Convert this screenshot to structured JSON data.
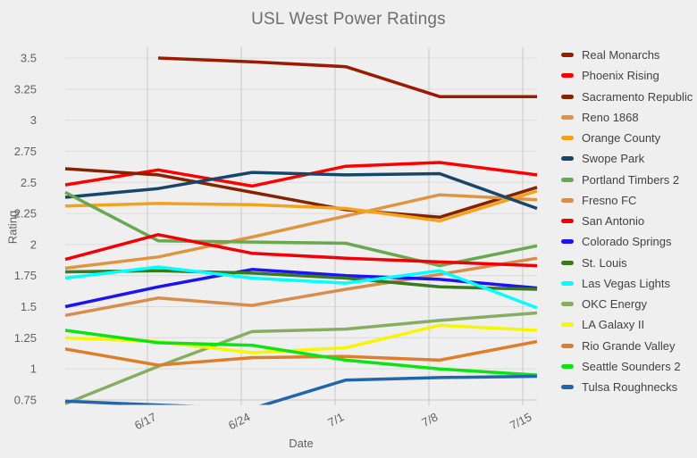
{
  "title": "USL West Power Ratings",
  "axes": {
    "y_label": "Rating",
    "x_label": "Date",
    "y_ticks": [
      "3.5",
      "3.25",
      "3",
      "2.75",
      "2.5",
      "2.25",
      "2",
      "1.75",
      "1.5",
      "1.25",
      "1",
      "0.75"
    ],
    "x_ticks": [
      "6/17",
      "6/24",
      "7/1",
      "7/8",
      "7/15"
    ]
  },
  "chart_data": {
    "type": "line",
    "title": "USL West Power Ratings",
    "xlabel": "Date",
    "ylabel": "Rating",
    "x": [
      "",
      "6/17",
      "6/24",
      "7/1",
      "7/8",
      "7/15"
    ],
    "x_tick_labels": [
      "6/17",
      "6/24",
      "7/1",
      "7/8",
      "7/15"
    ],
    "ylim": [
      0.75,
      3.5
    ],
    "y_tick_step": 0.25,
    "grid": true,
    "legend_position": "right",
    "series": [
      {
        "name": "Real Monarchs",
        "color": "#9a1b01",
        "values": [
          null,
          3.5,
          3.47,
          3.43,
          3.19,
          3.19
        ]
      },
      {
        "name": "Phoenix Rising",
        "color": "#ff0000",
        "values": [
          2.48,
          2.6,
          2.47,
          2.63,
          2.66,
          2.56
        ]
      },
      {
        "name": "Sacramento Republic",
        "color": "#842300",
        "values": [
          2.61,
          2.56,
          2.42,
          2.28,
          2.22,
          2.46
        ]
      },
      {
        "name": "Reno 1868",
        "color": "#e09440",
        "values": [
          1.81,
          1.9,
          2.06,
          2.23,
          2.4,
          2.36
        ]
      },
      {
        "name": "Orange County",
        "color": "#f3a21b",
        "values": [
          2.31,
          2.33,
          2.32,
          2.29,
          2.19,
          2.43
        ]
      },
      {
        "name": "Swope Park",
        "color": "#16466a",
        "values": [
          2.38,
          2.45,
          2.58,
          2.56,
          2.57,
          2.29
        ]
      },
      {
        "name": "Portland Timbers 2",
        "color": "#69a84f",
        "values": [
          2.42,
          2.03,
          2.02,
          2.01,
          1.83,
          1.99
        ]
      },
      {
        "name": "Fresno FC",
        "color": "#d88d4b",
        "values": [
          1.43,
          1.57,
          1.51,
          1.64,
          1.76,
          1.89
        ]
      },
      {
        "name": "San Antonio",
        "color": "#f10008",
        "values": [
          1.88,
          2.08,
          1.93,
          1.89,
          1.86,
          1.83
        ]
      },
      {
        "name": "Colorado Springs",
        "color": "#1d13f2",
        "values": [
          1.5,
          1.66,
          1.8,
          1.75,
          1.72,
          1.65
        ]
      },
      {
        "name": "St. Louis",
        "color": "#3a7a1e",
        "values": [
          1.78,
          1.79,
          1.77,
          1.73,
          1.66,
          1.64
        ]
      },
      {
        "name": "Las Vegas Lights",
        "color": "#00ffff",
        "values": [
          1.73,
          1.82,
          1.73,
          1.69,
          1.79,
          1.49
        ]
      },
      {
        "name": "OKC Energy",
        "color": "#86ad60",
        "values": [
          0.72,
          1.02,
          1.3,
          1.32,
          1.39,
          1.45
        ]
      },
      {
        "name": "LA Galaxy II",
        "color": "#f7f500",
        "values": [
          1.25,
          1.22,
          1.13,
          1.17,
          1.35,
          1.31
        ]
      },
      {
        "name": "Rio Grande Valley",
        "color": "#de7e2b",
        "values": [
          1.16,
          1.03,
          1.09,
          1.1,
          1.07,
          1.22
        ]
      },
      {
        "name": "Seattle Sounders 2",
        "color": "#0be312",
        "values": [
          1.31,
          1.21,
          1.19,
          1.07,
          1.0,
          0.95
        ]
      },
      {
        "name": "Tulsa Roughnecks",
        "color": "#2166ac",
        "values": [
          0.74,
          0.71,
          0.68,
          0.91,
          0.93,
          0.94
        ]
      }
    ]
  },
  "colors": {
    "background": "#efefef",
    "grid_horizontal": "#dcdcdc",
    "grid_vertical": "#c7c7c7",
    "axis_line": "#c7c7c7",
    "tick_text": "#616161",
    "title_text": "#6e6e6e",
    "legend_text": "#424242"
  }
}
